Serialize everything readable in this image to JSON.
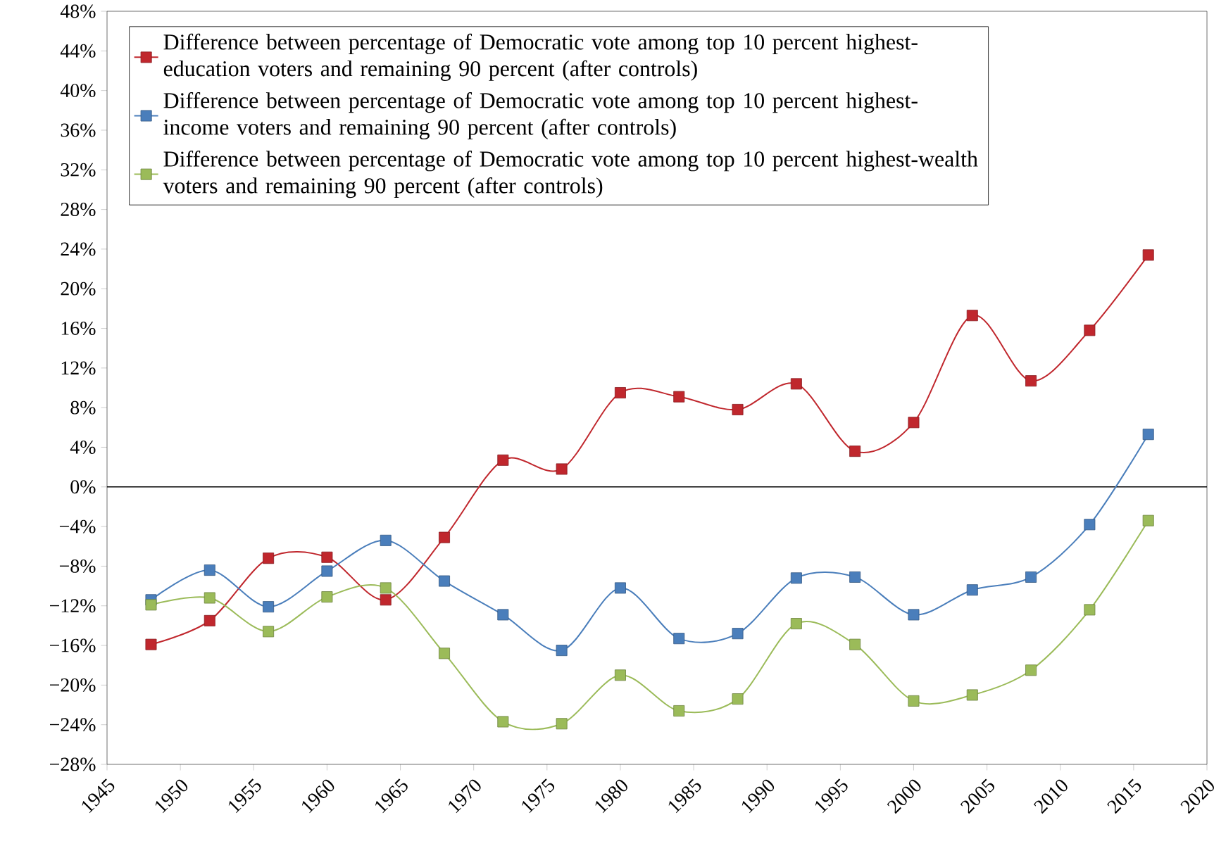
{
  "chart_data": {
    "type": "line",
    "marker": "square",
    "line_style": "solid",
    "legend": "top left",
    "x": [
      1948,
      1952,
      1956,
      1960,
      1964,
      1968,
      1972,
      1976,
      1980,
      1984,
      1988,
      1992,
      1996,
      2000,
      2004,
      2008,
      2012,
      2016
    ],
    "series": [
      {
        "name": "Difference between percentage of Democratic vote among top 10 percent highest-education voters and remaining 90 percent (after controls)",
        "color": "#c0272d",
        "values": [
          -15.9,
          -13.5,
          -7.2,
          -7.1,
          -11.4,
          -5.1,
          2.7,
          1.8,
          9.5,
          9.1,
          7.8,
          10.4,
          3.6,
          6.5,
          17.3,
          10.7,
          15.8,
          23.4
        ]
      },
      {
        "name": "Difference between percentage of Democratic vote among top 10 percent highest-income voters and remaining 90 percent (after controls)",
        "color": "#4a7ebb",
        "values": [
          -11.4,
          -8.4,
          -12.1,
          -8.5,
          -5.4,
          -9.5,
          -12.9,
          -16.5,
          -10.2,
          -15.3,
          -14.8,
          -9.2,
          -9.1,
          -12.9,
          -10.4,
          -9.1,
          -3.8,
          5.3
        ]
      },
      {
        "name": "Difference between percentage of Democratic vote among top 10 percent highest-wealth voters and remaining 90 percent (after controls)",
        "color": "#9bbb59",
        "values": [
          -11.9,
          -11.2,
          -14.6,
          -11.1,
          -10.2,
          -16.8,
          -23.7,
          -23.9,
          -19.0,
          -22.6,
          -21.4,
          -13.8,
          -15.9,
          -21.6,
          -21.0,
          -18.5,
          -12.4,
          -3.4
        ]
      }
    ],
    "xlim": [
      1945,
      2020
    ],
    "xticks": [
      1945,
      1950,
      1955,
      1960,
      1965,
      1970,
      1975,
      1980,
      1985,
      1990,
      1995,
      2000,
      2005,
      2010,
      2015,
      2020
    ],
    "ylim": [
      -28,
      48
    ],
    "yticks": [
      {
        "value": -28,
        "label": "−28%"
      },
      {
        "value": -24,
        "label": "−24%"
      },
      {
        "value": -20,
        "label": "−20%"
      },
      {
        "value": -16,
        "label": "−16%"
      },
      {
        "value": -12,
        "label": "−12%"
      },
      {
        "value": -8,
        "label": "−8%"
      },
      {
        "value": -4,
        "label": "−4%"
      },
      {
        "value": 0,
        "label": "0%"
      },
      {
        "value": 4,
        "label": "4%"
      },
      {
        "value": 8,
        "label": "8%"
      },
      {
        "value": 12,
        "label": "12%"
      },
      {
        "value": 16,
        "label": "16%"
      },
      {
        "value": 20,
        "label": "20%"
      },
      {
        "value": 24,
        "label": "24%"
      },
      {
        "value": 28,
        "label": "28%"
      },
      {
        "value": 32,
        "label": "32%"
      },
      {
        "value": 36,
        "label": "36%"
      },
      {
        "value": 40,
        "label": "40%"
      },
      {
        "value": 44,
        "label": "44%"
      },
      {
        "value": 48,
        "label": "48%"
      }
    ],
    "ref_lines": [
      {
        "axis": "y",
        "value": 0,
        "color": "#000000"
      }
    ]
  }
}
